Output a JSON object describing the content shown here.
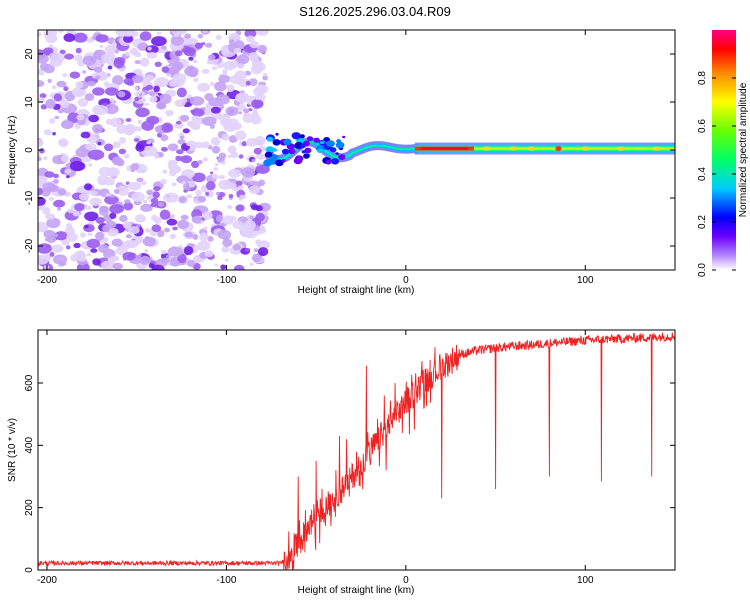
{
  "figure_title": "S126.2025.296.03.04.R09",
  "chart_data": [
    {
      "id": "spectrogram",
      "type": "heatmap",
      "title": "S126.2025.296.03.04.R09",
      "xlabel": "Height of straight line (km)",
      "ylabel": "Frequency (Hz)",
      "xlim": [
        -205,
        150
      ],
      "ylim": [
        -25,
        25
      ],
      "x_ticks": [
        -200,
        -100,
        0,
        100
      ],
      "y_ticks": [
        -20,
        -10,
        0,
        10,
        20
      ],
      "noise_region_x": [
        -205,
        -78
      ],
      "signal_onset_x": -78,
      "tone_freq_hz": 0.3,
      "bright_tone_x": [
        5,
        150
      ],
      "peak_x": [
        5,
        38
      ],
      "colorbar": {
        "label": "Normalized spectral amplitude",
        "range": [
          0.0,
          1.0
        ],
        "ticks": [
          0.0,
          0.2,
          0.4,
          0.6,
          0.8
        ],
        "tick_labels": [
          "0.0",
          "0.2",
          "0.4",
          "0.6",
          "0.8"
        ],
        "colors": [
          "#ffffff",
          "#8a2be2",
          "#0000ff",
          "#00ffff",
          "#00ff00",
          "#ffff00",
          "#ff8000",
          "#ff0000",
          "#ff0080"
        ]
      }
    },
    {
      "id": "snr",
      "type": "line",
      "xlabel": "Height of straight line (km)",
      "ylabel": "SNR (10 * v/v)",
      "xlim": [
        -205,
        150
      ],
      "ylim": [
        0,
        770
      ],
      "x_ticks": [
        -200,
        -100,
        0,
        100
      ],
      "y_ticks": [
        0,
        200,
        400,
        600
      ],
      "color": "#ee2222",
      "x": [
        -205,
        -180,
        -150,
        -120,
        -90,
        -70,
        -65,
        -60,
        -55,
        -50,
        -45,
        -40,
        -35,
        -30,
        -25,
        -20,
        -15,
        -10,
        -5,
        0,
        5,
        10,
        15,
        20,
        25,
        30,
        40,
        50,
        60,
        70,
        80,
        90,
        100,
        110,
        120,
        130,
        140,
        150
      ],
      "y": [
        22,
        22,
        22,
        22,
        22,
        22,
        40,
        80,
        130,
        180,
        200,
        230,
        260,
        300,
        340,
        380,
        420,
        460,
        500,
        540,
        570,
        600,
        630,
        650,
        670,
        690,
        705,
        712,
        718,
        722,
        728,
        732,
        737,
        740,
        742,
        745,
        748,
        750
      ],
      "dips": [
        {
          "x": 20,
          "y": 230
        },
        {
          "x": 50,
          "y": 260
        },
        {
          "x": 80,
          "y": 300
        },
        {
          "x": 109,
          "y": 285
        },
        {
          "x": 137,
          "y": 300
        }
      ],
      "spikes": [
        {
          "x": -60,
          "y": 300
        },
        {
          "x": -50,
          "y": 350
        },
        {
          "x": -37,
          "y": 430
        },
        {
          "x": -33,
          "y": 420
        },
        {
          "x": -22,
          "y": 655
        },
        {
          "x": -12,
          "y": 560
        },
        {
          "x": -6,
          "y": 600
        }
      ]
    }
  ]
}
